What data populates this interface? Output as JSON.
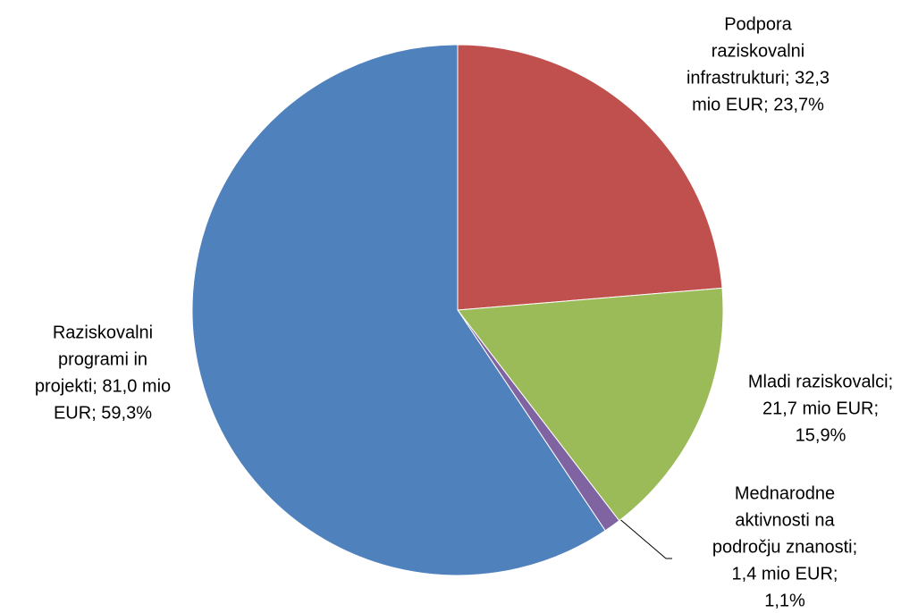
{
  "chart_data": {
    "type": "pie",
    "values": [
      32.3,
      21.7,
      1.4,
      81.0
    ],
    "value_labels": [
      [
        "Podpora",
        "raziskovalni",
        "infrastrukturi; 32,3",
        "mio EUR; 23,7%"
      ],
      [
        "Mladi raziskovalci;",
        "21,7 mio EUR;",
        "15,9%"
      ],
      [
        "Mednarodne",
        "aktivnosti na",
        "področju znanosti;",
        "1,4 mio EUR;",
        "1,1%"
      ],
      [
        "Raziskovalni",
        "programi in",
        "projekti; 81,0 mio",
        "EUR; 59,3%"
      ]
    ],
    "colors": [
      "#c0504d",
      "#9bbb59",
      "#8064a2",
      "#4f81bd"
    ]
  }
}
